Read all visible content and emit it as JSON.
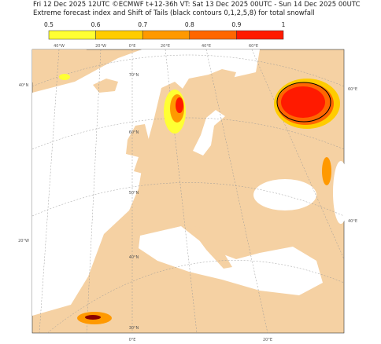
{
  "header": {
    "line1": "Fri 12 Dec 2025 12UTC ©ECMWF t+12-36h  VT: Sat 13 Dec 2025 00UTC - Sun 14 Dec 2025 00UTC",
    "line2": "Extreme forecast index and Shift of Tails (black contours 0,1,2,5,8) for total snowfall"
  },
  "colorbar": {
    "labels": [
      "0.5",
      "0.6",
      "0.7",
      "0.8",
      "0.9",
      "1"
    ],
    "colors": [
      "#ffff33",
      "#ffcc00",
      "#ff9900",
      "#ff6600",
      "#ff1a00"
    ]
  },
  "map": {
    "top_labels": [
      "40°W",
      "20°W",
      "0°E",
      "20°E",
      "40°E",
      "60°E"
    ],
    "left_labels": [
      "40°N",
      "20°W"
    ],
    "right_labels": [
      "60°E",
      "40°E"
    ],
    "inner_labels": [
      "70°N",
      "60°N",
      "50°N",
      "40°N",
      "30°N"
    ],
    "bottom_labels": [
      "0°E",
      "20°E"
    ]
  }
}
